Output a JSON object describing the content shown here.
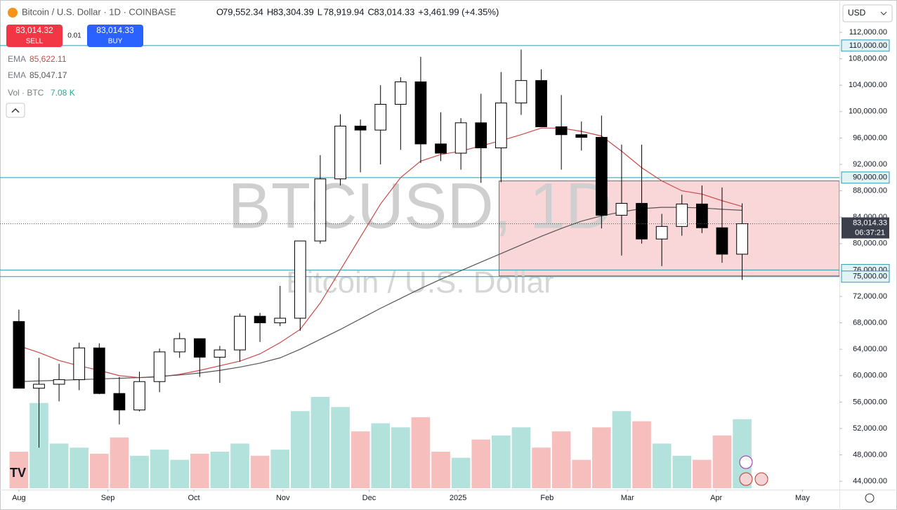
{
  "toolbar": {
    "symbol": "Bitcoin / U.S. Dollar · 1D · COINBASE",
    "ohlc": [
      {
        "key": "O",
        "text": "79,552.34"
      },
      {
        "key": "H",
        "text": "83,304.39"
      },
      {
        "key": "L",
        "text": "78,919.94"
      },
      {
        "key": "C",
        "text": "83,014.33"
      }
    ],
    "change": "+3,461.99 (+4.35%)",
    "sell": {
      "price": "83,014.32",
      "label": "SELL"
    },
    "spread": "0.01",
    "buy": {
      "price": "83,014.33",
      "label": "BUY"
    },
    "volume_label": "Vol · BTC",
    "volume_value": "7.08 K",
    "currency": "USD"
  },
  "chart_data": {
    "type": "candlestick",
    "watermark": {
      "symbol": "BTCUSD, 1D",
      "name": "Bitcoin / U.S. Dollar"
    },
    "categories": [
      null,
      null,
      null,
      null,
      null,
      null,
      null,
      null,
      null,
      null,
      null,
      null,
      null,
      null,
      null,
      null,
      null,
      null,
      null,
      null,
      null,
      null,
      null,
      null,
      null,
      null,
      null,
      null,
      null,
      null,
      null,
      null,
      null,
      null,
      null,
      null,
      null
    ],
    "open": [
      68200,
      58100,
      58700,
      59400,
      64200,
      57300,
      54800,
      59100,
      63600,
      65600,
      62800,
      63900,
      69000,
      68000,
      68700,
      80400,
      89800,
      97800,
      97200,
      101100,
      104500,
      95100,
      93700,
      98300,
      94500,
      101300,
      104700,
      97700,
      96500,
      96100,
      84300,
      86100,
      80700,
      82600,
      86000,
      82400,
      78400
    ],
    "high": [
      70000,
      62700,
      61800,
      65000,
      64900,
      59800,
      60600,
      64100,
      66500,
      65600,
      64500,
      69400,
      69500,
      73600,
      80300,
      93400,
      99600,
      98800,
      104000,
      105200,
      108300,
      99900,
      99000,
      102700,
      106000,
      109400,
      106400,
      102500,
      98500,
      99400,
      95000,
      95000,
      84500,
      87400,
      88800,
      88500,
      86100
    ],
    "low": [
      58300,
      49100,
      56100,
      57800,
      57200,
      52600,
      54600,
      57500,
      62700,
      59800,
      58900,
      62100,
      65100,
      67500,
      66800,
      80000,
      88800,
      90800,
      92000,
      94200,
      92200,
      92500,
      91200,
      89200,
      89300,
      99500,
      97800,
      91200,
      94100,
      82300,
      78200,
      80000,
      76600,
      81200,
      81600,
      77100,
      74500
    ],
    "close": [
      58100,
      58700,
      59400,
      64200,
      57300,
      54800,
      59100,
      63600,
      65600,
      62800,
      63900,
      69000,
      68000,
      68700,
      80400,
      89800,
      97800,
      97200,
      101100,
      104500,
      95100,
      93700,
      98300,
      94500,
      101300,
      104700,
      97700,
      96500,
      96100,
      84300,
      86100,
      80700,
      82600,
      86000,
      82400,
      78400,
      83014.33
    ],
    "up_color": "#ffffff",
    "down_color": "#000000",
    "volume": {
      "colors": {
        "up": "#a6dcd6",
        "down": "#f6b3b3"
      },
      "values": [
        18,
        42,
        22,
        20,
        17,
        25,
        16,
        19,
        14,
        17,
        18,
        22,
        16,
        19,
        38,
        45,
        40,
        28,
        32,
        30,
        35,
        18,
        15,
        24,
        26,
        30,
        20,
        28,
        14,
        30,
        38,
        33,
        22,
        16,
        14,
        26,
        34
      ]
    },
    "series": [
      {
        "name": "EMA",
        "color": "#c94a4a",
        "value_label": "85,622.11",
        "values": [
          64500,
          63500,
          62300,
          61500,
          60800,
          60000,
          59700,
          59800,
          60200,
          60800,
          61500,
          62200,
          63300,
          65000,
          67000,
          71000,
          76000,
          81000,
          86000,
          90000,
          92500,
          93500,
          94000,
          94800,
          95600,
          96500,
          97500,
          97500,
          97000,
          96300,
          94000,
          91500,
          89500,
          88000,
          87500,
          86500,
          85622.11
        ]
      },
      {
        "name": "EMA",
        "color": "#555555",
        "value_label": "85,047.17",
        "values": [
          59100,
          59200,
          59300,
          59400,
          59500,
          59600,
          59700,
          59900,
          60100,
          60400,
          60800,
          61300,
          61900,
          62700,
          64000,
          65500,
          67000,
          68600,
          70200,
          71700,
          73200,
          74600,
          75900,
          77200,
          78500,
          79800,
          81100,
          82300,
          83400,
          84200,
          84800,
          85300,
          85500,
          85500,
          85400,
          85200,
          85047.17
        ]
      }
    ],
    "xlim": [
      -0.94,
      40.84
    ],
    "xticks": [
      {
        "value": 0,
        "label": "Aug"
      },
      {
        "value": 4.43,
        "label": "Sep"
      },
      {
        "value": 8.71,
        "label": "Oct"
      },
      {
        "value": 13.14,
        "label": "Nov"
      },
      {
        "value": 17.43,
        "label": "Dec"
      },
      {
        "value": 21.86,
        "label": "2025"
      },
      {
        "value": 26.29,
        "label": "Feb"
      },
      {
        "value": 30.29,
        "label": "Mar"
      },
      {
        "value": 34.71,
        "label": "Apr"
      },
      {
        "value": 39,
        "label": "May"
      }
    ],
    "ylim": [
      42950,
      116900
    ],
    "yticks": [
      {
        "value": 44000,
        "label": "44,000.00"
      },
      {
        "value": 48000,
        "label": "48,000.00"
      },
      {
        "value": 52000,
        "label": "52,000.00"
      },
      {
        "value": 56000,
        "label": "56,000.00"
      },
      {
        "value": 60000,
        "label": "60,000.00"
      },
      {
        "value": 64000,
        "label": "64,000.00"
      },
      {
        "value": 68000,
        "label": "68,000.00"
      },
      {
        "value": 72000,
        "label": "72,000.00"
      },
      {
        "value": 80000,
        "label": "80,000.00"
      },
      {
        "value": 84000,
        "label": "84,000.00"
      },
      {
        "value": 88000,
        "label": "88,000.00"
      },
      {
        "value": 92000,
        "label": "92,000.00"
      },
      {
        "value": 96000,
        "label": "96,000.00"
      },
      {
        "value": 100000,
        "label": "100,000.00"
      },
      {
        "value": 104000,
        "label": "104,000.00"
      },
      {
        "value": 108000,
        "label": "108,000.00"
      },
      {
        "value": 112000,
        "label": "112,000.00"
      }
    ],
    "levels": [
      {
        "value": 110000,
        "label": "110,000.00"
      },
      {
        "value": 90000,
        "label": "90,000.00"
      },
      {
        "value": 76000,
        "label": "76,000.00"
      },
      {
        "value": 75000,
        "label": "75,000.00"
      }
    ],
    "level_color": "#2b9ab0",
    "zone": {
      "x": [
        23.9,
        40.84
      ],
      "y": [
        75100,
        89500
      ],
      "color": "#f9d6d8"
    },
    "last_price": {
      "value": 83014.33,
      "label": "83,014.33",
      "countdown": "06:37:21"
    },
    "grid": false
  }
}
